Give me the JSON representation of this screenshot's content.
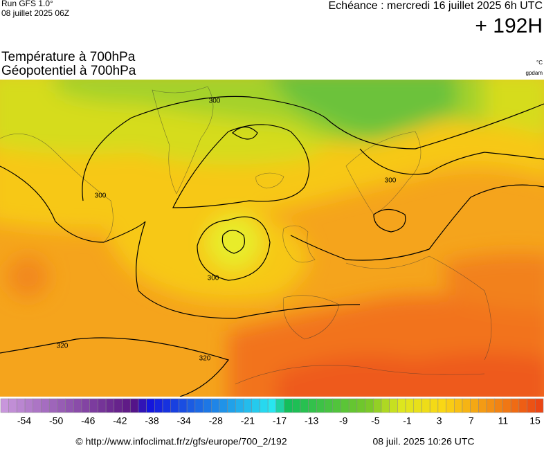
{
  "header": {
    "run": "Run GFS 1.0°",
    "date": "08 juillet 2025 06Z",
    "forecast": "Echéance : mercredi 16 juillet 2025 6h UTC",
    "lead": "+ 192H"
  },
  "titles": [
    "Température à 700hPa",
    "Géopotentiel à 700hPa"
  ],
  "units": [
    "°C",
    "gpdam"
  ],
  "map": {
    "contour_labels": [
      "300",
      "300",
      "300",
      "300",
      "320",
      "320"
    ]
  },
  "colorbar": {
    "labels": [
      "-54",
      "-50",
      "-46",
      "-42",
      "-38",
      "-34",
      "-28",
      "-21",
      "-17",
      "-13",
      "-9",
      "-5",
      "-1",
      "3",
      "7",
      "11",
      "15"
    ]
  },
  "footer": {
    "url": "© http://www.infoclimat.fr/z/gfs/europe/700_2/192",
    "timestamp": "08 juil. 2025 10:26 UTC"
  }
}
